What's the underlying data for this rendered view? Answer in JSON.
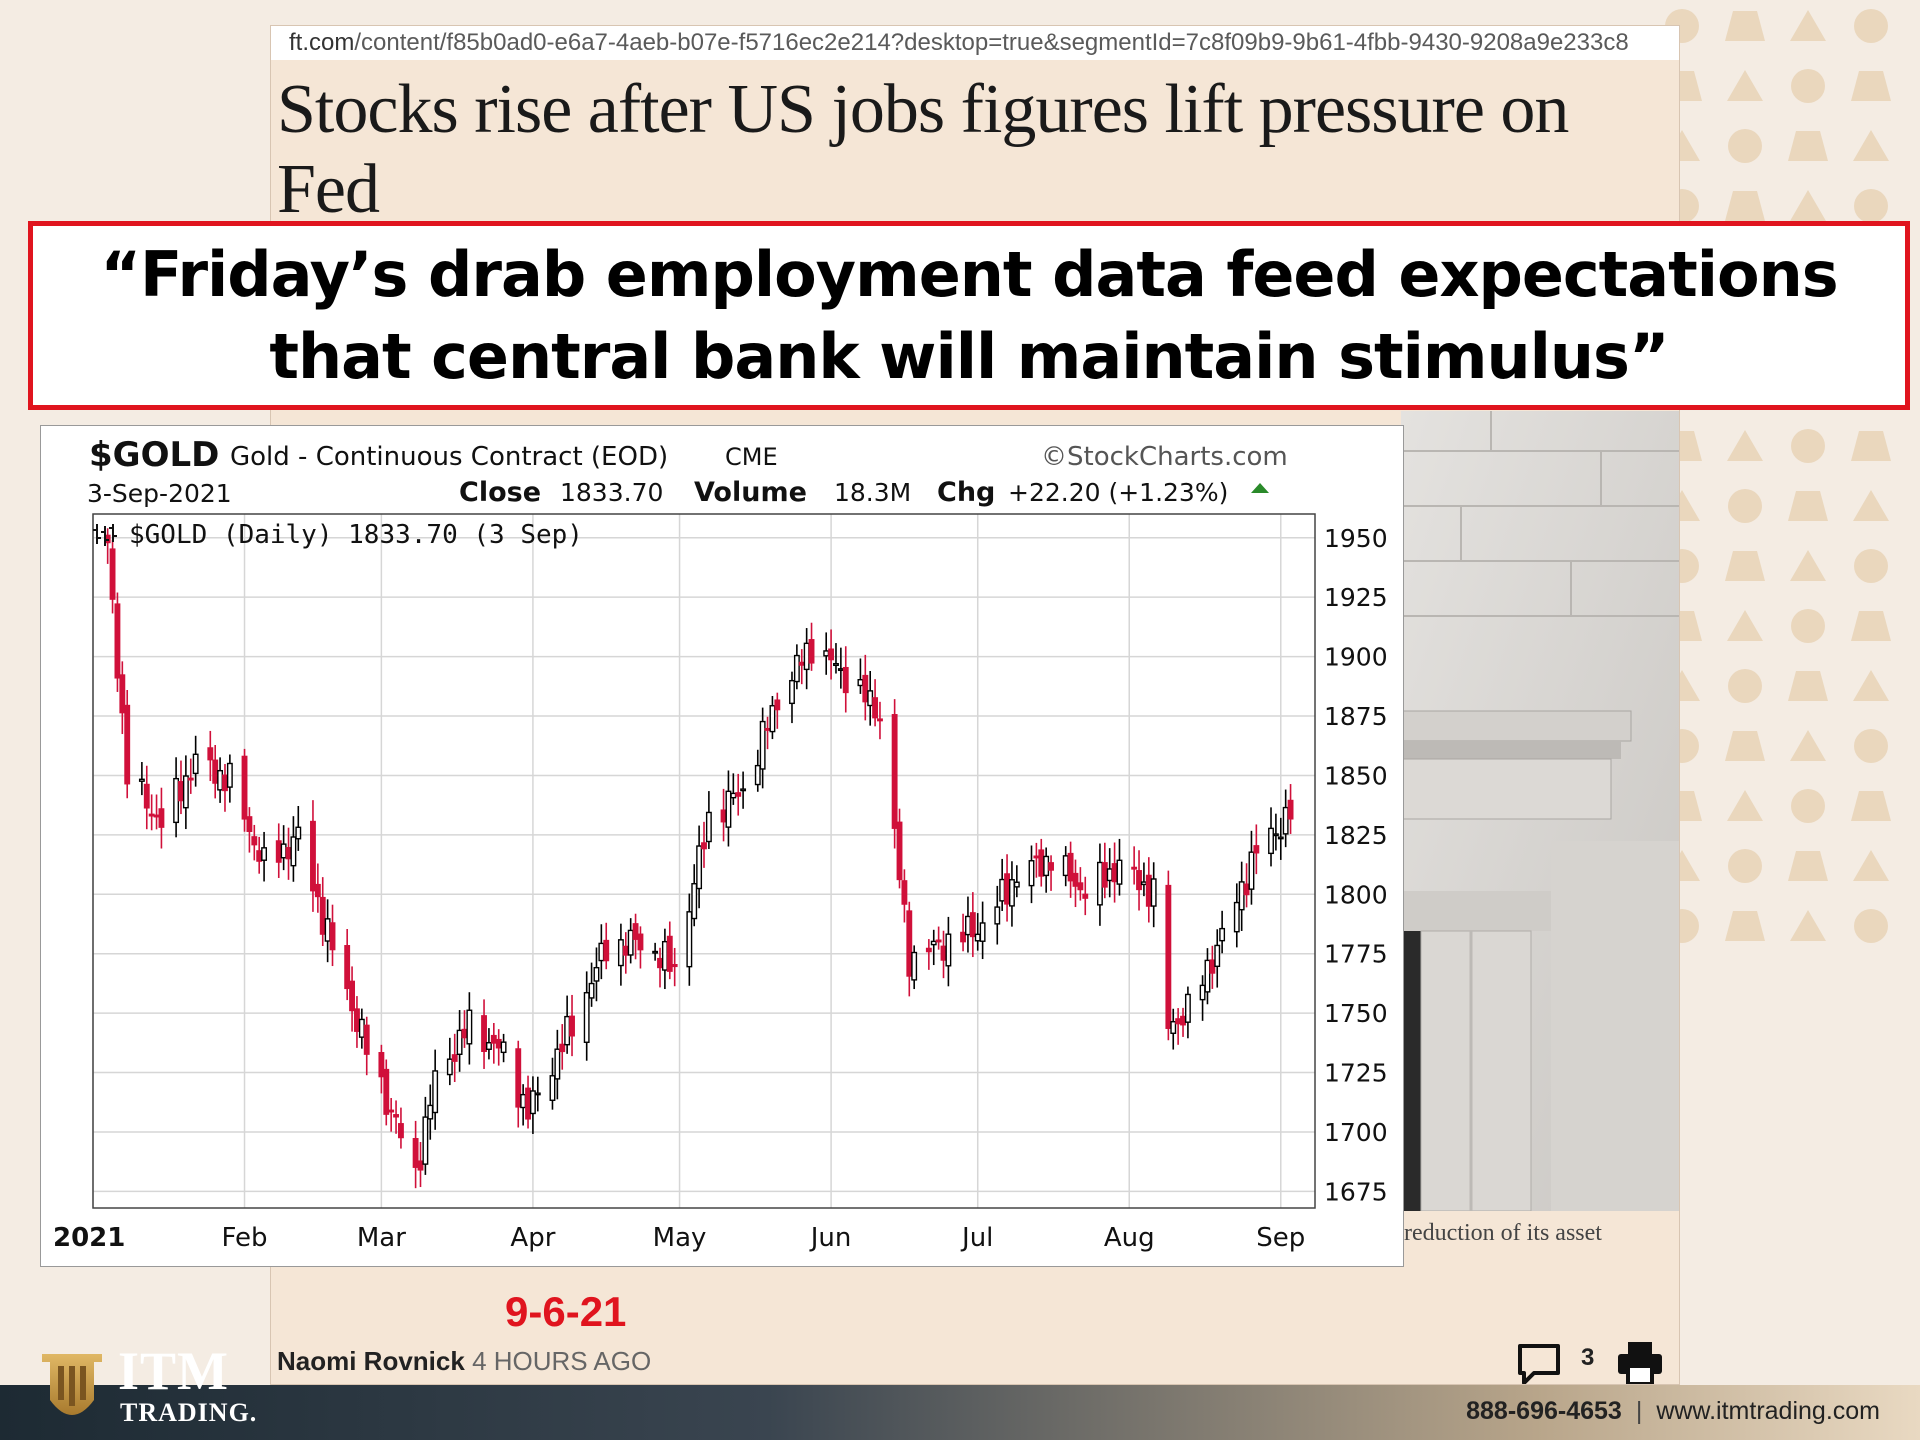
{
  "article": {
    "url_host": "ft.com",
    "url_path": "/content/f85b0ad0-e6a7-4aeb-b07e-f5716ec2e214?desktop=true&segmentId=7c8f09b9-9b61-4fbb-9430-9208a9e233c8",
    "title": "Stocks rise after US jobs figures lift pressure on Fed",
    "caption": "reduction of its asset",
    "author": "Naomi Rovnick",
    "time_ago": "4 HOURS AGO",
    "comment_count": "3",
    "icons": [
      "comment-icon",
      "print-icon"
    ]
  },
  "quote": {
    "line1": "“Friday’s drab employment data feed expectations",
    "line2": "that central bank will maintain stimulus”",
    "border_color": "#e0141e"
  },
  "date_stamp": "9-6-21",
  "chart": {
    "symbol": "$GOLD",
    "description": "Gold - Continuous Contract (EOD)",
    "exchange": "CME",
    "watermark": "©StockCharts.com",
    "date": "3-Sep-2021",
    "close_label": "Close",
    "close_value": "1833.70",
    "volume_label": "Volume",
    "volume_value": "18.3M",
    "chg_label": "Chg",
    "chg_value": "+22.20 (+1.23%)",
    "legend": "$GOLD (Daily) 1833.70 (3 Sep)",
    "up_color": "#000000",
    "down_color": "#d0103a"
  },
  "chart_data": {
    "type": "candlestick",
    "x_ticks": [
      "2021",
      "Feb",
      "Mar",
      "Apr",
      "May",
      "Jun",
      "Jul",
      "Aug",
      "Sep"
    ],
    "y_ticks": [
      1950,
      1925,
      1900,
      1875,
      1850,
      1825,
      1800,
      1775,
      1750,
      1725,
      1700,
      1675
    ],
    "ylim": [
      1668,
      1960
    ],
    "grid": true,
    "series": [
      {
        "name": "$GOLD (Daily)",
        "dates": [
          "2021-01-04",
          "2021-01-08",
          "2021-01-15",
          "2021-01-22",
          "2021-01-29",
          "2021-02-05",
          "2021-02-12",
          "2021-02-19",
          "2021-02-26",
          "2021-03-05",
          "2021-03-08",
          "2021-03-12",
          "2021-03-19",
          "2021-03-26",
          "2021-03-31",
          "2021-04-09",
          "2021-04-16",
          "2021-04-23",
          "2021-04-30",
          "2021-05-07",
          "2021-05-14",
          "2021-05-21",
          "2021-05-28",
          "2021-06-04",
          "2021-06-11",
          "2021-06-17",
          "2021-06-25",
          "2021-07-02",
          "2021-07-09",
          "2021-07-16",
          "2021-07-23",
          "2021-07-30",
          "2021-08-06",
          "2021-08-09",
          "2021-08-13",
          "2021-08-20",
          "2021-08-27",
          "2021-09-03"
        ],
        "close": [
          1945,
          1850,
          1830,
          1856,
          1848,
          1812,
          1824,
          1777,
          1735,
          1698,
          1682,
          1722,
          1745,
          1733,
          1708,
          1745,
          1778,
          1780,
          1769,
          1832,
          1844,
          1882,
          1905,
          1892,
          1876,
          1773,
          1780,
          1787,
          1808,
          1815,
          1801,
          1812,
          1800,
          1744,
          1751,
          1782,
          1818,
          1833.7
        ]
      }
    ]
  },
  "footer": {
    "logo_main": "ITM",
    "logo_sub": "TRADING.",
    "phone": "888-696-4653",
    "separator": "|",
    "website": "www.itmtrading.com"
  }
}
